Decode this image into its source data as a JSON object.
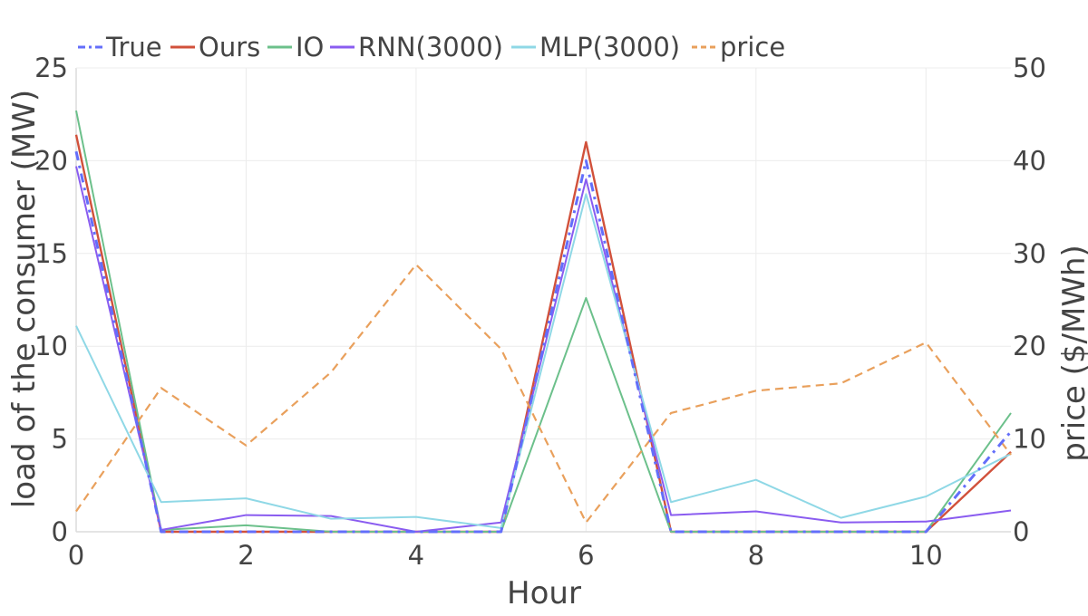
{
  "chart_data": {
    "type": "line",
    "x": [
      0,
      1,
      2,
      3,
      4,
      5,
      6,
      7,
      8,
      9,
      10,
      11
    ],
    "xlabel": "Hour",
    "ylabel_left": "load of the consumer (MW)",
    "ylabel_right": "price ($/MWh)",
    "xlim": [
      0,
      11
    ],
    "ylim_left": [
      0,
      25
    ],
    "ylim_right": [
      0,
      50
    ],
    "x_ticks": [
      0,
      2,
      4,
      6,
      8,
      10
    ],
    "y_ticks_left": [
      0,
      5,
      10,
      15,
      20,
      25
    ],
    "y_ticks_right": [
      0,
      10,
      20,
      30,
      40,
      50
    ],
    "grid": true,
    "legend_position": "top",
    "series": [
      {
        "name": "True",
        "axis": "left",
        "color": "#636efa",
        "dash": "dashdot",
        "values": [
          20.5,
          0,
          0,
          0,
          0,
          0,
          20.0,
          0,
          0,
          0,
          0,
          5.4
        ]
      },
      {
        "name": "Ours",
        "axis": "left",
        "color": "#d1513b",
        "dash": "solid",
        "values": [
          21.4,
          0,
          0,
          0,
          0,
          0,
          21.0,
          0,
          0,
          0,
          0,
          4.3
        ]
      },
      {
        "name": "IO",
        "axis": "left",
        "color": "#6cc08b",
        "dash": "solid",
        "values": [
          22.7,
          0.1,
          0.35,
          0,
          0,
          0,
          12.6,
          0,
          0,
          0,
          0,
          6.4
        ]
      },
      {
        "name": "RNN(3000)",
        "axis": "left",
        "color": "#8a5cf0",
        "dash": "solid",
        "values": [
          19.7,
          0.1,
          0.9,
          0.85,
          0,
          0.5,
          19.0,
          0.9,
          1.1,
          0.5,
          0.55,
          1.15
        ]
      },
      {
        "name": "MLP(3000)",
        "axis": "left",
        "color": "#8fd8e6",
        "dash": "solid",
        "values": [
          11.1,
          1.6,
          1.8,
          0.7,
          0.8,
          0.2,
          18.2,
          1.6,
          2.8,
          0.75,
          1.9,
          4.2
        ]
      },
      {
        "name": "price",
        "axis": "right",
        "color": "#e9a05c",
        "dash": "dash",
        "values": [
          2.2,
          15.5,
          9.3,
          17.2,
          28.8,
          19.7,
          1.0,
          12.8,
          15.2,
          16.0,
          20.4,
          8.3
        ]
      }
    ]
  }
}
